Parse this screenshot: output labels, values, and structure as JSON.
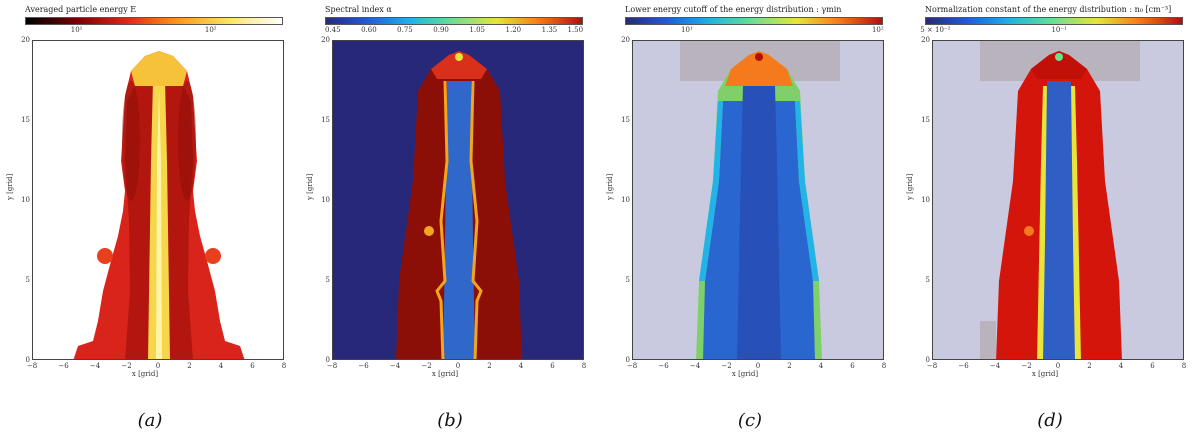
{
  "panels": [
    {
      "id": "a",
      "caption": "(a)",
      "colorbar_title": "Averaged particle energy E",
      "colorbar_ticks": [
        "10¹",
        "10²"
      ],
      "xlabel": "x [grid]",
      "ylabel": "y [grid]",
      "x_ticks": [
        "−8",
        "−6",
        "−4",
        "−2",
        "0",
        "2",
        "4",
        "6",
        "8"
      ],
      "y_ticks": [
        "0",
        "5",
        "10",
        "15",
        "20"
      ],
      "colors": {
        "background": "#ffffff",
        "outer": "#d8241a",
        "inner": "#b3160f",
        "jet": "#f6d64a",
        "jet_core": "#fff4a8",
        "colorbar": [
          "#000000",
          "#7a0000",
          "#e02a12",
          "#ff9a1f",
          "#ffe56a",
          "#ffffff"
        ]
      }
    },
    {
      "id": "b",
      "caption": "(b)",
      "colorbar_title": "Spectral index α",
      "colorbar_ticks": [
        "0.45",
        "0.60",
        "0.75",
        "0.90",
        "1.05",
        "1.20",
        "1.35",
        "1.50"
      ],
      "xlabel": "x [grid]",
      "ylabel": "y [grid]",
      "x_ticks": [
        "−8",
        "−6",
        "−4",
        "−2",
        "0",
        "2",
        "4",
        "6",
        "8"
      ],
      "y_ticks": [
        "0",
        "5",
        "10",
        "15",
        "20"
      ],
      "colors": {
        "background": "#27287a",
        "outer": "#8b0f07",
        "inner": "#8b0f07",
        "jet": "#2f68c8",
        "jet_core": "#3b7ad8",
        "colorbar": [
          "#26297a",
          "#1c60d8",
          "#22b4e6",
          "#6de08e",
          "#e8e43a",
          "#f57a1c",
          "#b01008"
        ]
      }
    },
    {
      "id": "c",
      "caption": "(c)",
      "colorbar_title": "Lower energy cutoff of the energy distribution : γmin",
      "colorbar_ticks": [
        "10¹",
        "10²"
      ],
      "xlabel": "x [grid]",
      "ylabel": "y [grid]",
      "x_ticks": [
        "−8",
        "−6",
        "−4",
        "−2",
        "0",
        "2",
        "4",
        "6",
        "8"
      ],
      "y_ticks": [
        "0",
        "5",
        "10",
        "15",
        "20"
      ],
      "colors": {
        "background": "#c9cadf",
        "outer": "#7fd06a",
        "inner": "#2a66d0",
        "jet": "#2750b8",
        "jet_core": "#3866cc",
        "colorbar": [
          "#26297a",
          "#1c60d8",
          "#22b4e6",
          "#6de08e",
          "#e8e43a",
          "#f57a1c",
          "#b01008"
        ]
      }
    },
    {
      "id": "d",
      "caption": "(d)",
      "colorbar_title": "Normalization constant of the energy distribution : n₀ [cm⁻³]",
      "colorbar_ticks": [
        "5 × 10⁻²",
        "10⁻¹"
      ],
      "xlabel": "x [grid]",
      "ylabel": "y [grid]",
      "x_ticks": [
        "−8",
        "−6",
        "−4",
        "−2",
        "0",
        "2",
        "4",
        "6",
        "8"
      ],
      "y_ticks": [
        "0",
        "5",
        "10",
        "15",
        "20"
      ],
      "colors": {
        "background": "#c9cadf",
        "outer": "#d3150c",
        "inner": "#c01008",
        "jet": "#2f5fc4",
        "jet_core": "#3b72d4",
        "colorbar": [
          "#26297a",
          "#1c60d8",
          "#22b4e6",
          "#6de08e",
          "#e8e43a",
          "#f57a1c",
          "#b01008"
        ]
      }
    }
  ]
}
